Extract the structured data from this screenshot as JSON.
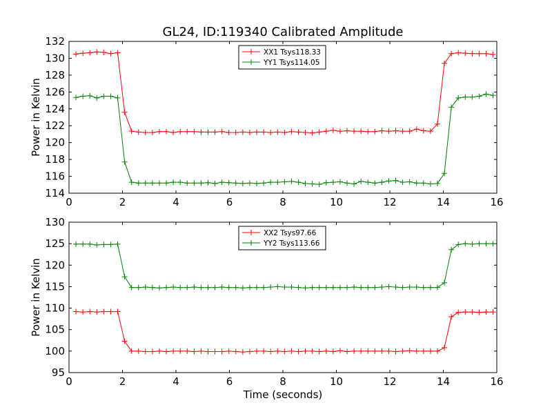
{
  "chart_data": [
    {
      "type": "line",
      "title": "GL24, ID:119340 Calibrated Amplitude",
      "xlabel": "",
      "ylabel": "Power in Kelvin",
      "xlim": [
        0,
        16
      ],
      "ylim": [
        114,
        132
      ],
      "xticks": [
        0,
        2,
        4,
        6,
        8,
        10,
        12,
        14,
        16
      ],
      "yticks": [
        114,
        116,
        118,
        120,
        122,
        124,
        126,
        128,
        130,
        132
      ],
      "legend_position": "top-center",
      "series": [
        {
          "name": "XX1 Tsys118.33",
          "color": "#ff0000",
          "x": [
            0.26,
            0.52,
            0.78,
            1.04,
            1.3,
            1.56,
            1.82,
            2.08,
            2.34,
            2.6,
            2.86,
            3.12,
            3.38,
            3.64,
            3.9,
            4.16,
            4.42,
            4.68,
            4.94,
            5.2,
            5.46,
            5.72,
            5.98,
            6.24,
            6.5,
            6.76,
            7.02,
            7.28,
            7.54,
            7.8,
            8.06,
            8.32,
            8.58,
            8.84,
            9.1,
            9.36,
            9.62,
            9.88,
            10.14,
            10.4,
            10.66,
            10.92,
            11.18,
            11.44,
            11.7,
            11.96,
            12.22,
            12.48,
            12.74,
            13.0,
            13.26,
            13.52,
            13.78,
            14.04,
            14.3,
            14.56,
            14.82,
            15.08,
            15.34,
            15.6,
            15.86
          ],
          "y": [
            130.5,
            130.6,
            130.65,
            130.75,
            130.7,
            130.55,
            130.65,
            123.6,
            121.35,
            121.25,
            121.2,
            121.2,
            121.3,
            121.3,
            121.2,
            121.3,
            121.3,
            121.3,
            121.25,
            121.25,
            121.25,
            121.3,
            121.2,
            121.2,
            121.25,
            121.2,
            121.25,
            121.25,
            121.2,
            121.25,
            121.2,
            121.3,
            121.25,
            121.2,
            121.15,
            121.25,
            121.35,
            121.45,
            121.35,
            121.4,
            121.35,
            121.35,
            121.3,
            121.3,
            121.4,
            121.35,
            121.4,
            121.35,
            121.35,
            121.6,
            121.4,
            121.35,
            122.2,
            129.4,
            130.55,
            130.65,
            130.6,
            130.55,
            130.55,
            130.55,
            130.45
          ]
        },
        {
          "name": "YY1 Tsys114.05",
          "color": "#008000",
          "x": [
            0.26,
            0.52,
            0.78,
            1.04,
            1.3,
            1.56,
            1.82,
            2.08,
            2.34,
            2.6,
            2.86,
            3.12,
            3.38,
            3.64,
            3.9,
            4.16,
            4.42,
            4.68,
            4.94,
            5.2,
            5.46,
            5.72,
            5.98,
            6.24,
            6.5,
            6.76,
            7.02,
            7.28,
            7.54,
            7.8,
            8.06,
            8.32,
            8.58,
            8.84,
            9.1,
            9.36,
            9.62,
            9.88,
            10.14,
            10.4,
            10.66,
            10.92,
            11.18,
            11.44,
            11.7,
            11.96,
            12.22,
            12.48,
            12.74,
            13.0,
            13.26,
            13.52,
            13.78,
            14.04,
            14.3,
            14.56,
            14.82,
            15.08,
            15.34,
            15.6,
            15.86
          ],
          "y": [
            125.35,
            125.5,
            125.55,
            125.3,
            125.5,
            125.5,
            125.3,
            117.7,
            115.3,
            115.2,
            115.2,
            115.2,
            115.2,
            115.2,
            115.3,
            115.3,
            115.2,
            115.2,
            115.2,
            115.25,
            115.15,
            115.3,
            115.25,
            115.2,
            115.15,
            115.2,
            115.15,
            115.2,
            115.3,
            115.3,
            115.35,
            115.4,
            115.3,
            115.15,
            115.1,
            115.05,
            115.25,
            115.3,
            115.35,
            115.2,
            115.1,
            115.4,
            115.3,
            115.2,
            115.3,
            115.45,
            115.5,
            115.3,
            115.35,
            115.2,
            115.2,
            115.1,
            115.15,
            116.35,
            124.2,
            125.3,
            125.4,
            125.4,
            125.5,
            125.75,
            125.6
          ]
        }
      ]
    },
    {
      "type": "line",
      "title": "",
      "xlabel": "Time (seconds)",
      "ylabel": "Power in Kelvin",
      "xlim": [
        0,
        16
      ],
      "ylim": [
        95,
        130
      ],
      "xticks": [
        0,
        2,
        4,
        6,
        8,
        10,
        12,
        14,
        16
      ],
      "yticks": [
        95,
        100,
        105,
        110,
        115,
        120,
        125,
        130
      ],
      "legend_position": "top-center",
      "series": [
        {
          "name": "XX2 Tsys97.66",
          "color": "#ff0000",
          "x": [
            0.26,
            0.52,
            0.78,
            1.04,
            1.3,
            1.56,
            1.82,
            2.08,
            2.34,
            2.6,
            2.86,
            3.12,
            3.38,
            3.64,
            3.9,
            4.16,
            4.42,
            4.68,
            4.94,
            5.2,
            5.46,
            5.72,
            5.98,
            6.24,
            6.5,
            6.76,
            7.02,
            7.28,
            7.54,
            7.8,
            8.06,
            8.32,
            8.58,
            8.84,
            9.1,
            9.36,
            9.62,
            9.88,
            10.14,
            10.4,
            10.66,
            10.92,
            11.18,
            11.44,
            11.7,
            11.96,
            12.22,
            12.48,
            12.74,
            13.0,
            13.26,
            13.52,
            13.78,
            14.04,
            14.3,
            14.56,
            14.82,
            15.08,
            15.34,
            15.6,
            15.86
          ],
          "y": [
            109.2,
            109.1,
            109.2,
            109.1,
            109.2,
            109.2,
            109.2,
            102.3,
            100.0,
            100.0,
            99.9,
            99.9,
            100.0,
            99.9,
            100.0,
            100.0,
            100.0,
            99.9,
            100.0,
            99.9,
            99.9,
            99.9,
            100.0,
            99.9,
            99.8,
            99.9,
            100.0,
            100.0,
            99.9,
            100.0,
            99.9,
            100.0,
            99.9,
            100.0,
            100.0,
            99.9,
            100.0,
            99.9,
            100.1,
            99.9,
            100.0,
            100.0,
            100.0,
            100.0,
            100.0,
            100.0,
            99.9,
            100.0,
            100.1,
            100.0,
            100.0,
            100.0,
            100.0,
            100.8,
            108.0,
            109.0,
            109.1,
            109.1,
            109.0,
            109.1,
            109.1
          ]
        },
        {
          "name": "YY2 Tsys113.66",
          "color": "#008000",
          "x": [
            0.26,
            0.52,
            0.78,
            1.04,
            1.3,
            1.56,
            1.82,
            2.08,
            2.34,
            2.6,
            2.86,
            3.12,
            3.38,
            3.64,
            3.9,
            4.16,
            4.42,
            4.68,
            4.94,
            5.2,
            5.46,
            5.72,
            5.98,
            6.24,
            6.5,
            6.76,
            7.02,
            7.28,
            7.54,
            7.8,
            8.06,
            8.32,
            8.58,
            8.84,
            9.1,
            9.36,
            9.62,
            9.88,
            10.14,
            10.4,
            10.66,
            10.92,
            11.18,
            11.44,
            11.7,
            11.96,
            12.22,
            12.48,
            12.74,
            13.0,
            13.26,
            13.52,
            13.78,
            14.04,
            14.3,
            14.56,
            14.82,
            15.08,
            15.34,
            15.6,
            15.86
          ],
          "y": [
            124.9,
            124.9,
            124.9,
            124.7,
            124.8,
            124.8,
            124.9,
            117.3,
            114.8,
            114.8,
            114.9,
            114.8,
            114.7,
            114.8,
            114.9,
            114.8,
            114.8,
            114.9,
            114.8,
            114.8,
            114.8,
            114.9,
            114.8,
            114.8,
            114.7,
            114.8,
            114.8,
            114.8,
            114.9,
            115.0,
            114.9,
            114.9,
            114.8,
            114.7,
            114.8,
            114.8,
            114.8,
            114.8,
            114.8,
            114.8,
            114.9,
            114.8,
            114.8,
            114.8,
            114.9,
            115.0,
            114.9,
            114.8,
            114.9,
            114.9,
            114.8,
            114.8,
            114.8,
            115.9,
            123.6,
            124.8,
            125.0,
            124.9,
            125.0,
            125.0,
            125.0
          ]
        }
      ]
    }
  ]
}
